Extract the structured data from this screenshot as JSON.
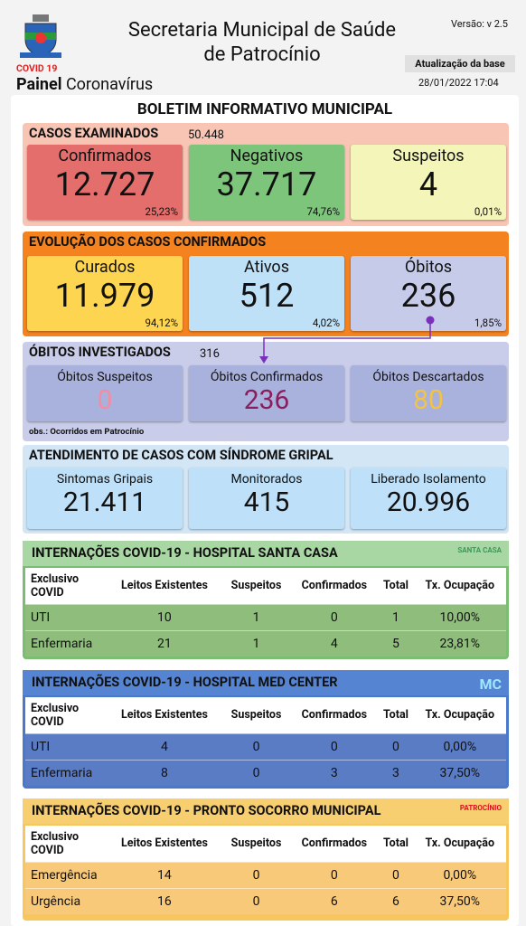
{
  "header": {
    "title_line1": "Secretaria Municipal de Saúde",
    "title_line2": "de Patrocínio",
    "version": "Versão: v 2.5",
    "update_label": "Atualização da base",
    "update_date": "28/01/2022 17:04",
    "logo_caption": "COVID 19",
    "panel_bold": "Painel",
    "panel_rest": "Coronavírus"
  },
  "bulletin_title": "BOLETIM INFORMATIVO MUNICIPAL",
  "examined": {
    "title": "CASOS EXAMINADOS",
    "total": "50.448",
    "cards": [
      {
        "label": "Confirmados",
        "value": "12.727",
        "percent": "25,23%"
      },
      {
        "label": "Negativos",
        "value": "37.717",
        "percent": "74,76%"
      },
      {
        "label": "Suspeitos",
        "value": "4",
        "percent": "0,01%"
      }
    ]
  },
  "evolution": {
    "title": "EVOLUÇÃO DOS CASOS CONFIRMADOS",
    "cards": [
      {
        "label": "Curados",
        "value": "11.979",
        "percent": "94,12%"
      },
      {
        "label": "Ativos",
        "value": "512",
        "percent": "4,02%"
      },
      {
        "label": "Óbitos",
        "value": "236",
        "percent": "1,85%"
      }
    ]
  },
  "deaths": {
    "title": "ÓBITOS INVESTIGADOS",
    "total": "316",
    "cards": [
      {
        "label": "Óbitos Suspeitos",
        "value": "0"
      },
      {
        "label": "Óbitos Confirmados",
        "value": "236"
      },
      {
        "label": "Óbitos Descartados",
        "value": "80"
      }
    ],
    "note": "obs.: Ocorridos em Patrocínio"
  },
  "syndrome": {
    "title": "ATENDIMENTO DE CASOS COM SÍNDROME GRIPAL",
    "cards": [
      {
        "label": "Sintomas Gripais",
        "value": "21.411"
      },
      {
        "label": "Monitorados",
        "value": "415"
      },
      {
        "label": "Liberado Isolamento",
        "value": "20.996"
      }
    ]
  },
  "hospitals": [
    {
      "title": "INTERNAÇÕES COVID-19 - HOSPITAL SANTA CASA",
      "logo": "SANTA CASA",
      "header": [
        "Exclusivo COVID",
        "Leitos Existentes",
        "Suspeitos",
        "Confirmados",
        "Total",
        "Tx. Ocupação"
      ],
      "rows": [
        [
          "UTI",
          "10",
          "1",
          "0",
          "1",
          "10,00%"
        ],
        [
          "Enfermaria",
          "21",
          "1",
          "4",
          "5",
          "23,81%"
        ]
      ]
    },
    {
      "title": "INTERNAÇÕES COVID-19 - HOSPITAL MED CENTER",
      "logo": "MC",
      "header": [
        "Exclusivo COVID",
        "Leitos Existentes",
        "Suspeitos",
        "Confirmados",
        "Total",
        "Tx. Ocupação"
      ],
      "rows": [
        [
          "UTI",
          "4",
          "0",
          "0",
          "0",
          "0,00%"
        ],
        [
          "Enfermaria",
          "8",
          "0",
          "3",
          "3",
          "37,50%"
        ]
      ]
    },
    {
      "title": "INTERNAÇÕES COVID-19 - PRONTO SOCORRO MUNICIPAL",
      "logo": "PATROCÍNIO",
      "header": [
        "Exclusivo COVID",
        "Leitos Existentes",
        "Suspeitos",
        "Confirmados",
        "Total",
        "Tx. Ocupação"
      ],
      "rows": [
        [
          "Emergência",
          "14",
          "0",
          "0",
          "0",
          "0,00%"
        ],
        [
          "Urgência",
          "16",
          "0",
          "6",
          "6",
          "37,50%"
        ]
      ]
    }
  ]
}
